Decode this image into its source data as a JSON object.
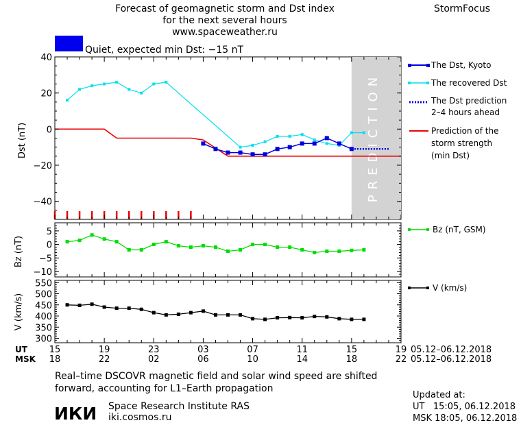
{
  "header": {
    "title_lines": [
      "Forecast of geomagnetic storm and Dst index",
      "for the next several hours",
      "www.spaceweather.ru"
    ],
    "brand": "StormFocus",
    "status_text": "Quiet, expected min Dst: −15 nT",
    "status_color": "#0000ee"
  },
  "colors": {
    "dst_kyoto": "#0000dd",
    "dst_recovered": "#00e0f0",
    "dst_prediction": "#0000dd",
    "storm_strength": "#ee0000",
    "bz": "#00dd00",
    "speed": "#000000",
    "prediction_zone": "#d3d3d3",
    "prediction_text": "#ffffff"
  },
  "panels": {
    "dst": {
      "ylabel": "Dst (nT)",
      "yticks": [
        "40",
        "20",
        "0",
        "−20",
        "−40"
      ],
      "prediction_label": "PREDICTION",
      "legend": [
        {
          "type": "kyoto",
          "lines": [
            "The Dst, Kyoto"
          ]
        },
        {
          "type": "recovered",
          "lines": [
            "The recovered Dst"
          ]
        },
        {
          "type": "prediction",
          "lines": [
            "The Dst prediction",
            "2–4 hours ahead"
          ]
        },
        {
          "type": "strength",
          "lines": [
            "Prediction of the",
            "storm strength",
            "(min Dst)"
          ]
        }
      ]
    },
    "bz": {
      "ylabel": "Bz (nT)",
      "yticks": [
        "5",
        "0",
        "−5",
        "−10"
      ],
      "legend": "Bz (nT, GSM)"
    },
    "v": {
      "ylabel": "V (km/s)",
      "yticks": [
        "550",
        "500",
        "450",
        "400",
        "350",
        "300"
      ],
      "legend": "V (km/s)"
    }
  },
  "time_axis": {
    "ut_label": "UT",
    "msk_label": "MSK",
    "ut_ticks": [
      "15",
      "19",
      "23",
      "03",
      "07",
      "11",
      "15",
      "19"
    ],
    "msk_ticks": [
      "18",
      "22",
      "02",
      "06",
      "10",
      "14",
      "18",
      "22"
    ],
    "ut_range": "05.12–06.12.2018",
    "msk_range": "05.12–06.12.2018"
  },
  "footer": {
    "note_lines": [
      "Real–time DSCOVR magnetic field and solar wind speed are shifted",
      "forward, accounting for L1–Earth propagation"
    ],
    "logo_text": "ИКИ",
    "institute": "Space Research Institute RAS",
    "site": "iki.cosmos.ru",
    "updated_label": "Updated at:",
    "updated_ut": "UT   15:05, 06.12.2018",
    "updated_msk": "MSK 18:05, 06.12.2018"
  },
  "chart_data": [
    {
      "type": "line",
      "title": "Forecast of geomagnetic storm and Dst index",
      "xlabel": "UT",
      "ylabel": "Dst (nT)",
      "xlim": [
        15,
        43
      ],
      "ylim": [
        -50,
        40
      ],
      "x_unit": "hours UT from 05.12.2018 00:00",
      "prediction_zone": [
        39,
        43
      ],
      "series": [
        {
          "name": "The Dst, Kyoto",
          "x": [
            27,
            28,
            29,
            30,
            31,
            32,
            33,
            34,
            35,
            36,
            37,
            38,
            39
          ],
          "y": [
            -8,
            -11,
            -13,
            -13,
            -14,
            -14,
            -11,
            -10,
            -8,
            -8,
            -5,
            -8,
            -11
          ]
        },
        {
          "name": "The recovered Dst",
          "x": [
            16,
            17,
            18,
            19,
            20,
            21,
            22,
            23,
            24,
            30,
            31,
            32,
            33,
            34,
            35,
            36,
            37,
            38,
            39,
            40
          ],
          "y": [
            16,
            22,
            24,
            25,
            26,
            22,
            20,
            25,
            26,
            -10,
            -9,
            -7,
            -4,
            -4,
            -3,
            -6,
            -8,
            -9,
            -2,
            -2
          ]
        },
        {
          "name": "The Dst prediction 2–4 hours ahead",
          "x": [
            39,
            40,
            41,
            42
          ],
          "y": [
            -11,
            -11,
            -11,
            -11
          ]
        },
        {
          "name": "Prediction of the storm strength (min Dst)",
          "x": [
            15,
            19,
            20,
            26,
            27,
            29,
            43
          ],
          "y": [
            0,
            0,
            -5,
            -5,
            -6,
            -15,
            -15
          ]
        }
      ],
      "annotations": {
        "quiet_markers_x": [
          15,
          16,
          17,
          18,
          19,
          20,
          21,
          22,
          23,
          24,
          25,
          26
        ]
      }
    },
    {
      "type": "line",
      "ylabel": "Bz (nT)",
      "xlim": [
        15,
        43
      ],
      "ylim": [
        -12,
        8
      ],
      "series": [
        {
          "name": "Bz (nT, GSM)",
          "x": [
            16,
            17,
            18,
            19,
            20,
            21,
            22,
            23,
            24,
            25,
            26,
            27,
            28,
            29,
            30,
            31,
            32,
            33,
            34,
            35,
            36,
            37,
            38,
            39,
            40
          ],
          "y": [
            1,
            1.5,
            3.5,
            2,
            1,
            -2,
            -2,
            0,
            1,
            -0.5,
            -1,
            -0.5,
            -1,
            -2.5,
            -2,
            0,
            0,
            -1,
            -1,
            -2,
            -3,
            -2.5,
            -2.5,
            -2.2,
            -2
          ]
        }
      ]
    },
    {
      "type": "line",
      "ylabel": "V (km/s)",
      "xlim": [
        15,
        43
      ],
      "ylim": [
        280,
        560
      ],
      "series": [
        {
          "name": "V (km/s)",
          "x": [
            16,
            17,
            18,
            19,
            20,
            21,
            22,
            23,
            24,
            25,
            26,
            27,
            28,
            29,
            30,
            31,
            32,
            33,
            34,
            35,
            36,
            37,
            38,
            39,
            40
          ],
          "y": [
            450,
            448,
            453,
            440,
            435,
            435,
            430,
            415,
            405,
            408,
            415,
            422,
            405,
            405,
            405,
            388,
            385,
            392,
            393,
            392,
            398,
            396,
            388,
            385,
            385
          ]
        }
      ]
    }
  ]
}
